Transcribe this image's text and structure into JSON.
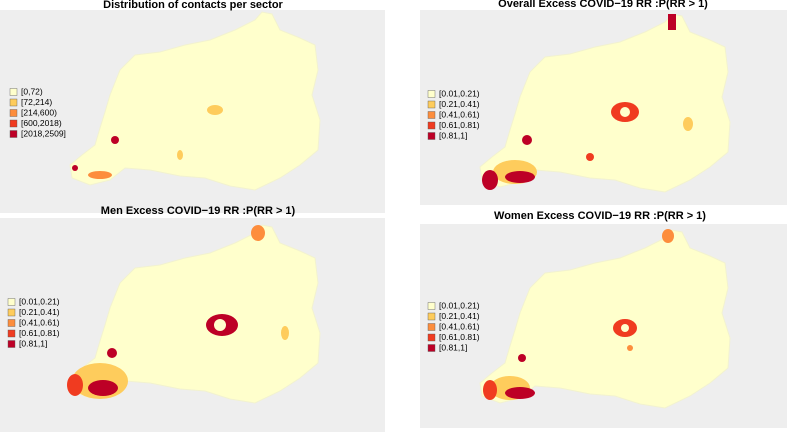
{
  "panels": [
    {
      "title": "Distribution of contacts per sector",
      "legend": [
        {
          "label": "[0,72)",
          "color": "#ffffcc"
        },
        {
          "label": "[72,214)",
          "color": "#fecc5c"
        },
        {
          "label": "[214,600)",
          "color": "#fd8d3c"
        },
        {
          "label": "[600,2018)",
          "color": "#f03b20"
        },
        {
          "label": "[2018,2509]",
          "color": "#bd0026"
        }
      ]
    },
    {
      "title": "Overall Excess COVID−19 RR :P(RR > 1)",
      "legend": [
        {
          "label": "[0.01,0.21)",
          "color": "#ffffcc"
        },
        {
          "label": "[0.21,0.41)",
          "color": "#fecc5c"
        },
        {
          "label": "[0.41,0.61)",
          "color": "#fd8d3c"
        },
        {
          "label": "[0.61,0.81)",
          "color": "#f03b20"
        },
        {
          "label": "[0.81,1]",
          "color": "#bd0026"
        }
      ]
    },
    {
      "title": "Men Excess COVID−19 RR :P(RR > 1)",
      "legend": [
        {
          "label": "[0.01,0.21)",
          "color": "#ffffcc"
        },
        {
          "label": "[0.21,0.41)",
          "color": "#fecc5c"
        },
        {
          "label": "[0.41,0.61)",
          "color": "#fd8d3c"
        },
        {
          "label": "[0.61,0.81)",
          "color": "#f03b20"
        },
        {
          "label": "[0.81,1]",
          "color": "#bd0026"
        }
      ]
    },
    {
      "title": "Women Excess COVID−19 RR :P(RR > 1)",
      "legend": [
        {
          "label": "[0.01,0.21)",
          "color": "#ffffcc"
        },
        {
          "label": "[0.21,0.41)",
          "color": "#fecc5c"
        },
        {
          "label": "[0.41,0.61)",
          "color": "#fd8d3c"
        },
        {
          "label": "[0.61,0.81)",
          "color": "#f03b20"
        },
        {
          "label": "[0.81,1]",
          "color": "#bd0026"
        }
      ]
    }
  ]
}
